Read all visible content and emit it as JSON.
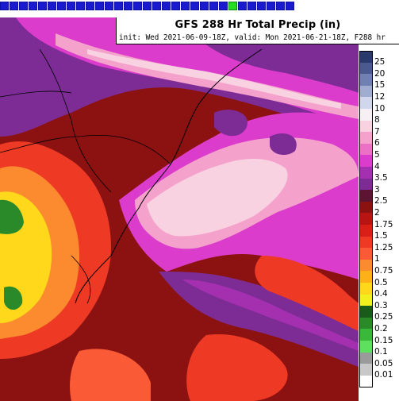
{
  "header": {
    "title": "GFS 288 Hr Total Precip (in)",
    "subtitle": "init: Wed 2021-06-09-18Z, valid: Mon 2021-06-21-18Z, F288 hr"
  },
  "progress": {
    "total_frames": 31,
    "current_frame": 24
  },
  "legend": [
    {
      "label": "25",
      "color": "#2a3a6a"
    },
    {
      "label": "20",
      "color": "#4a5a8c"
    },
    {
      "label": "15",
      "color": "#7080b0"
    },
    {
      "label": "12",
      "color": "#a0acd0"
    },
    {
      "label": "10",
      "color": "#d0d6ec"
    },
    {
      "label": "8",
      "color": "#f6f0f4"
    },
    {
      "label": "7",
      "color": "#f9d2e2"
    },
    {
      "label": "6",
      "color": "#f4a2cc"
    },
    {
      "label": "5",
      "color": "#ec70c6"
    },
    {
      "label": "4",
      "color": "#dc3ccc"
    },
    {
      "label": "3.5",
      "color": "#a430b0"
    },
    {
      "label": "3",
      "color": "#7c2c94"
    },
    {
      "label": "2.5",
      "color": "#5c1432"
    },
    {
      "label": "2",
      "color": "#8c1212"
    },
    {
      "label": "1.75",
      "color": "#b81414"
    },
    {
      "label": "1.5",
      "color": "#d82018"
    },
    {
      "label": "1.25",
      "color": "#ee3a24"
    },
    {
      "label": "1",
      "color": "#fa5a36"
    },
    {
      "label": "0.75",
      "color": "#fc8a2e"
    },
    {
      "label": "0.5",
      "color": "#feb018"
    },
    {
      "label": "0.4",
      "color": "#ffd81c"
    },
    {
      "label": "0.3",
      "color": "#f0f01e"
    },
    {
      "label": "0.25",
      "color": "#1a5a1a"
    },
    {
      "label": "0.2",
      "color": "#2a8a2a"
    },
    {
      "label": "0.15",
      "color": "#3ab83a"
    },
    {
      "label": "0.1",
      "color": "#5ee05e"
    },
    {
      "label": "0.05",
      "color": "#9a9a9a"
    },
    {
      "label": "0.01",
      "color": "#c8c8c8"
    },
    {
      "label": "",
      "color": "#ffffff"
    }
  ]
}
